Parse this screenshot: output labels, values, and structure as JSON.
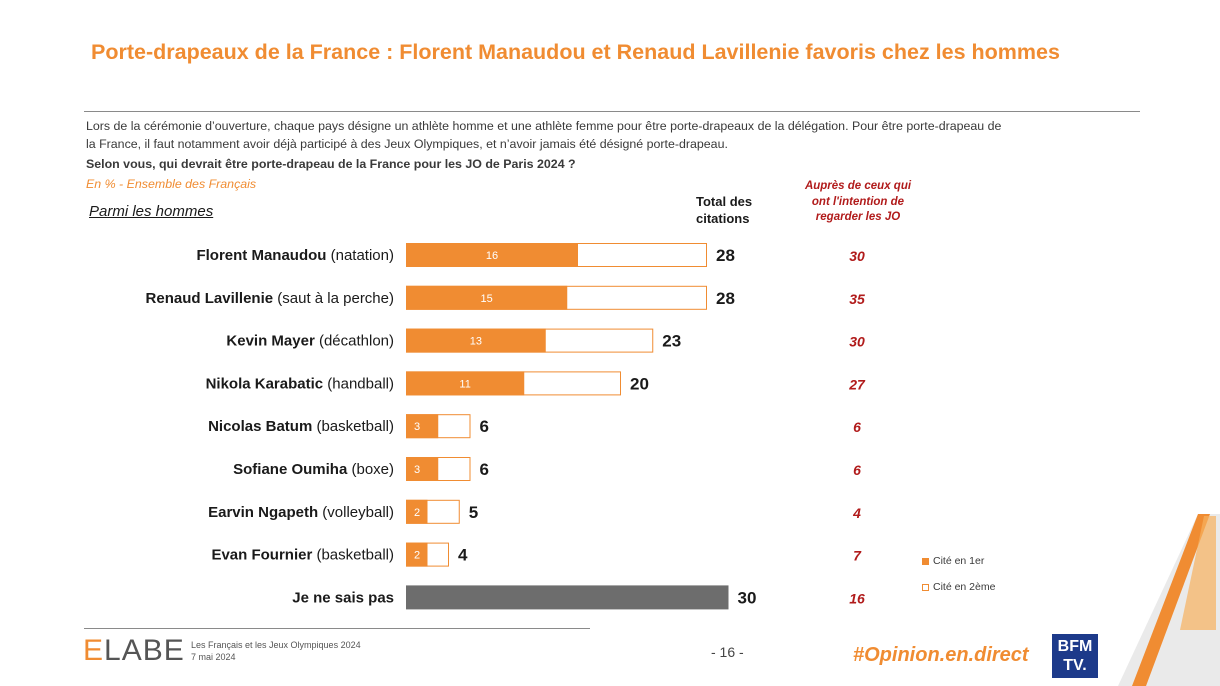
{
  "header": {
    "title": "Porte-drapeaux de la France : Florent Manaudou et Renaud Lavillenie favoris chez les hommes"
  },
  "intro": {
    "line1": "Lors de la cérémonie d’ouverture, chaque pays désigne un athlète homme et une athlète femme pour être porte-drapeaux de la délégation. Pour être porte-drapeau de",
    "line2": "la France, il faut notamment avoir déjà participé à des Jeux Olympiques, et n’avoir jamais été désigné porte-drapeau.",
    "question": "Selon vous, qui devrait être porte-drapeau de la France pour les JO de Paris 2024 ?",
    "base": "En % - Ensemble des Français"
  },
  "group_label": "Parmi les hommes",
  "columns": {
    "total_line1": "Total des",
    "total_line2": "citations",
    "jo_line1": "Auprès de ceux qui",
    "jo_line2": "ont l'intention de",
    "jo_line3": "regarder les JO"
  },
  "colors": {
    "first": "#f08c32",
    "second": "#ffffff",
    "unknown": "#6d6d6d",
    "jo_value": "#b11b1b",
    "border": "#f08c32"
  },
  "chart_data": {
    "type": "bar",
    "orientation": "horizontal",
    "stacked": true,
    "title": "Selon vous, qui devrait être porte-drapeau de la France pour les JO de Paris 2024 ?",
    "unit": "%",
    "rows": [
      {
        "name": "Florent Manaudou",
        "sport": "(natation)",
        "first": 16,
        "total": 28,
        "jo": 30
      },
      {
        "name": "Renaud Lavillenie",
        "sport": "(saut à la perche)",
        "first": 15,
        "total": 28,
        "jo": 35
      },
      {
        "name": "Kevin Mayer",
        "sport": "(décathlon)",
        "first": 13,
        "total": 23,
        "jo": 30
      },
      {
        "name": "Nikola Karabatic",
        "sport": "(handball)",
        "first": 11,
        "total": 20,
        "jo": 27
      },
      {
        "name": "Nicolas Batum",
        "sport": "(basketball)",
        "first": 3,
        "total": 6,
        "jo": 6
      },
      {
        "name": "Sofiane Oumiha",
        "sport": "(boxe)",
        "first": 3,
        "total": 6,
        "jo": 6
      },
      {
        "name": "Earvin Ngapeth",
        "sport": "(volleyball)",
        "first": 2,
        "total": 5,
        "jo": 4
      },
      {
        "name": "Evan Fournier",
        "sport": "(basketball)",
        "first": 2,
        "total": 4,
        "jo": 7
      },
      {
        "name": "Je ne sais pas",
        "sport": "",
        "first": null,
        "total": 30,
        "jo": 16,
        "unknown": true
      }
    ],
    "legend": [
      "Cité en 1er",
      "Cité en 2ème"
    ],
    "legend_position": "bottom-right",
    "xlim": [
      0,
      30
    ]
  },
  "footer": {
    "brand_e": "E",
    "brand_rest": "LABE",
    "study_line1": "Les Français et les Jeux Olympiques 2024",
    "study_line2": "7 mai 2024",
    "page": "- 16 -",
    "hashtag": "#Opinion.en.direct",
    "tv_line1": "BFM",
    "tv_line2": "TV."
  }
}
